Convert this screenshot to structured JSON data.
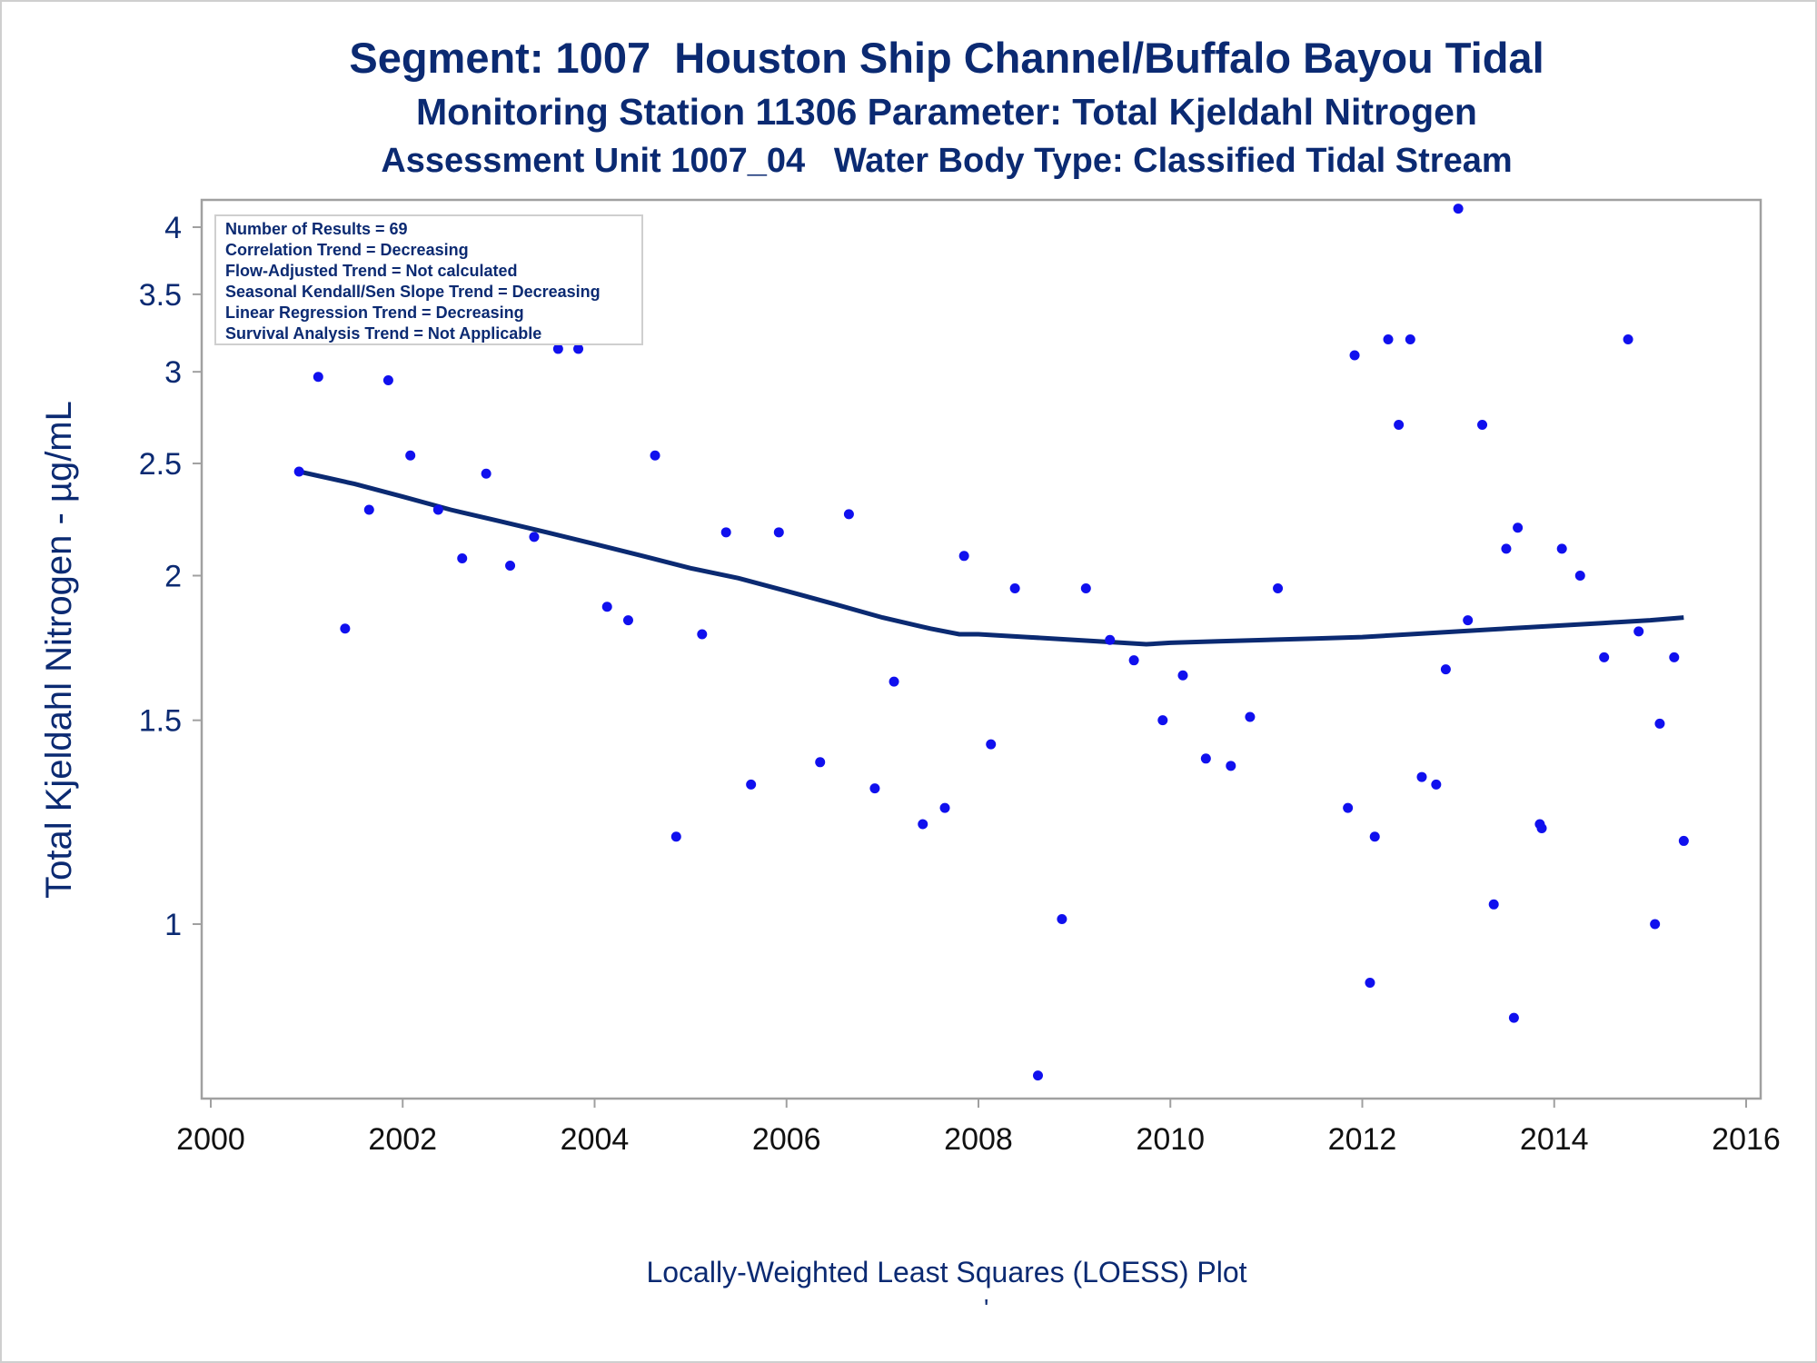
{
  "titles": {
    "line1": "Segment: 1007  Houston Ship Channel/Buffalo Bayou Tidal",
    "line2": "Monitoring Station 11306 Parameter: Total Kjeldahl Nitrogen",
    "line3": "Assessment Unit 1007_04   Water Body Type: Classified Tidal Stream"
  },
  "footnotes": {
    "method": "Locally-Weighted Least Squares (LOESS) Plot",
    "mark": "'"
  },
  "stats_box": {
    "lines": [
      "Number of Results = 69",
      "Correlation Trend = Decreasing",
      "Flow-Adjusted Trend = Not calculated",
      "Seasonal Kendall/Sen Slope Trend = Decreasing",
      "Linear Regression Trend = Decreasing",
      "Survival Analysis Trend = Not Applicable"
    ]
  },
  "colors": {
    "text": "#0b2a72",
    "points": "#1010ee",
    "loess_line": "#0b2a72",
    "axis": "#a0a0a0"
  },
  "chart_data": {
    "type": "scatter",
    "ylabel": "Total Kjeldahl Nitrogen -  µg/mL",
    "xlabel": "",
    "y_scale": "log",
    "xlim": [
      2000,
      2016
    ],
    "ylim": [
      0.74,
      4.1
    ],
    "x_ticks": [
      2000,
      2002,
      2004,
      2006,
      2008,
      2010,
      2012,
      2014,
      2016
    ],
    "x_tick_labels": [
      "2000",
      "2002",
      "2004",
      "2006",
      "2008",
      "2010",
      "2012",
      "2014",
      "2016"
    ],
    "y_ticks": [
      1,
      1.5,
      2,
      2.5,
      3,
      3.5,
      4
    ],
    "y_tick_labels": [
      "1",
      "1.5",
      "2",
      "2.5",
      "3",
      "3.5",
      "4"
    ],
    "grid": false,
    "legend_placement": "top-left (inside plot)",
    "series": [
      {
        "kind": "points",
        "x": [
          2000.92,
          2001.12,
          2001.4,
          2001.65,
          2001.85,
          2002.08,
          2002.37,
          2002.62,
          2002.87,
          2003.12,
          2003.37,
          2003.62,
          2003.83,
          2004.13,
          2004.35,
          2004.63,
          2004.85,
          2005.12,
          2005.37,
          2005.63,
          2005.92,
          2006.35,
          2006.65,
          2006.92,
          2007.12,
          2007.42,
          2007.65,
          2007.85,
          2008.13,
          2008.38,
          2008.62,
          2008.87,
          2009.12,
          2009.37,
          2009.62,
          2009.92,
          2010.13,
          2010.37,
          2010.63,
          2010.83,
          2011.12,
          2011.85,
          2011.92,
          2012.08,
          2012.13,
          2012.27,
          2012.38,
          2012.5,
          2012.62,
          2012.77,
          2012.87,
          2013.0,
          2013.1,
          2013.25,
          2013.37,
          2013.5,
          2013.58,
          2013.62,
          2013.85,
          2013.87,
          2014.08,
          2014.27,
          2014.52,
          2014.77,
          2014.88,
          2015.05,
          2015.1,
          2015.25,
          2015.35
        ],
        "y": [
          2.46,
          2.97,
          1.8,
          2.28,
          2.95,
          2.54,
          2.28,
          2.07,
          2.45,
          2.04,
          2.16,
          3.14,
          3.14,
          1.88,
          1.83,
          2.54,
          1.19,
          1.78,
          2.18,
          1.32,
          2.18,
          1.38,
          2.26,
          1.31,
          1.62,
          1.22,
          1.26,
          2.08,
          1.43,
          1.95,
          0.74,
          1.01,
          1.95,
          1.76,
          1.69,
          1.5,
          1.64,
          1.39,
          1.37,
          1.51,
          1.95,
          1.26,
          3.1,
          0.89,
          1.19,
          3.2,
          2.7,
          3.2,
          1.34,
          1.32,
          1.66,
          4.15,
          1.83,
          2.7,
          1.04,
          2.11,
          0.83,
          2.2,
          1.22,
          1.21,
          2.11,
          2.0,
          1.7,
          3.2,
          1.79,
          1.0,
          1.49,
          1.7,
          1.18
        ]
      },
      {
        "kind": "loess",
        "x": [
          2000.92,
          2001.5,
          2002.0,
          2002.5,
          2003.0,
          2003.5,
          2004.0,
          2004.5,
          2005.0,
          2005.5,
          2006.0,
          2006.5,
          2007.0,
          2007.5,
          2007.8,
          2008.0,
          2008.5,
          2009.0,
          2009.5,
          2009.75,
          2010.0,
          2010.5,
          2011.0,
          2011.5,
          2012.0,
          2012.5,
          2013.0,
          2013.5,
          2014.0,
          2014.5,
          2015.0,
          2015.35
        ],
        "y": [
          2.46,
          2.4,
          2.34,
          2.28,
          2.23,
          2.18,
          2.13,
          2.08,
          2.03,
          1.99,
          1.94,
          1.89,
          1.84,
          1.8,
          1.78,
          1.78,
          1.77,
          1.76,
          1.75,
          1.745,
          1.75,
          1.755,
          1.76,
          1.765,
          1.77,
          1.78,
          1.79,
          1.8,
          1.81,
          1.82,
          1.83,
          1.84
        ]
      }
    ]
  }
}
